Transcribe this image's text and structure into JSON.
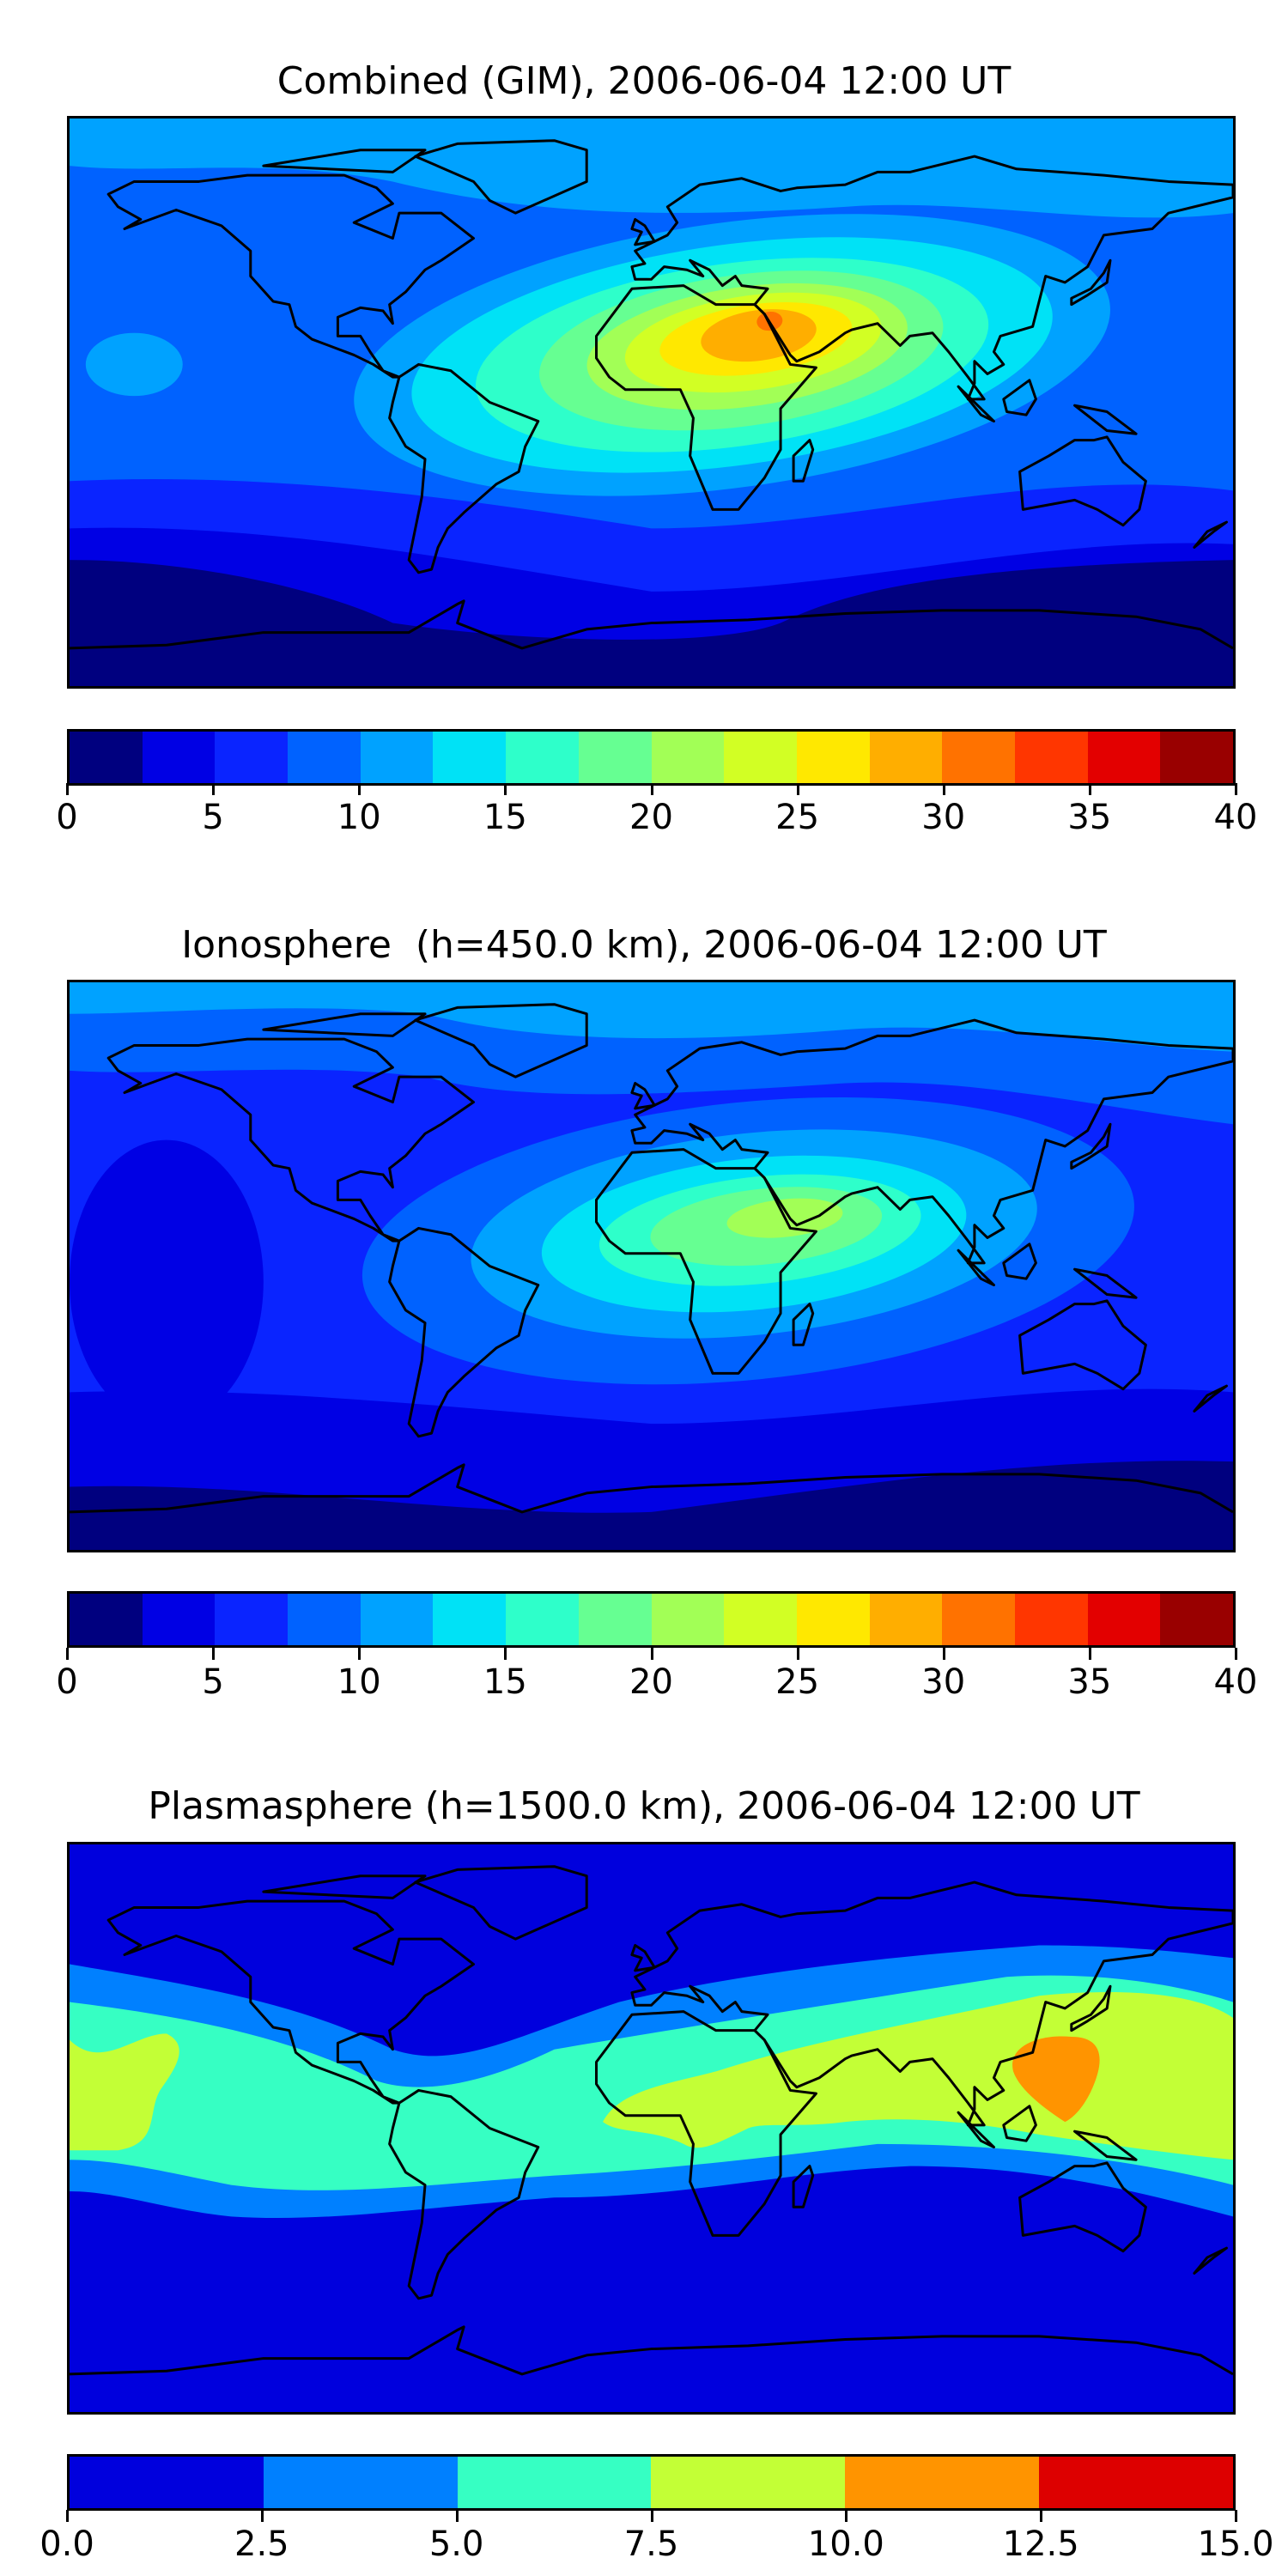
{
  "chart_data": [
    {
      "type": "heatmap",
      "title": "Combined (GIM), 2006-06-04 12:00 UT",
      "projection": "global map with coastlines",
      "colorbar": {
        "levels": [
          0,
          2.5,
          5,
          7.5,
          10,
          12.5,
          15,
          17.5,
          20,
          22.5,
          25,
          27.5,
          30,
          32.5,
          35,
          37.5,
          40
        ],
        "ticks": [
          "0",
          "5",
          "10",
          "15",
          "20",
          "25",
          "30",
          "35",
          "40"
        ],
        "colors": [
          "#00007f",
          "#0000e4",
          "#0a24ff",
          "#0062ff",
          "#00a2ff",
          "#00e2f6",
          "#2effca",
          "#66ff92",
          "#a2ff56",
          "#d2ff24",
          "#ffe800",
          "#ffae00",
          "#ff7200",
          "#ff3600",
          "#e30000",
          "#990000"
        ],
        "range": [
          0,
          40
        ]
      },
      "field_summary": {
        "max_region": "Arabian Peninsula / NE Africa",
        "max_value_approx": 32.5
      }
    },
    {
      "type": "heatmap",
      "title": "Ionosphere  (h=450.0 km), 2006-06-04 12:00 UT",
      "projection": "global map with coastlines",
      "colorbar": {
        "levels": [
          0,
          2.5,
          5,
          7.5,
          10,
          12.5,
          15,
          17.5,
          20,
          22.5,
          25,
          27.5,
          30,
          32.5,
          35,
          37.5,
          40
        ],
        "ticks": [
          "0",
          "5",
          "10",
          "15",
          "20",
          "25",
          "30",
          "35",
          "40"
        ],
        "colors": [
          "#00007f",
          "#0000e4",
          "#0a24ff",
          "#0062ff",
          "#00a2ff",
          "#00e2f6",
          "#2effca",
          "#66ff92",
          "#a2ff56",
          "#d2ff24",
          "#ffe800",
          "#ffae00",
          "#ff7200",
          "#ff3600",
          "#e30000",
          "#990000"
        ],
        "range": [
          0,
          40
        ]
      },
      "field_summary": {
        "max_region": "NE Africa / Arabia",
        "max_value_approx": 22.5
      }
    },
    {
      "type": "heatmap",
      "title": "Plasmasphere (h=1500.0 km), 2006-06-04 12:00 UT",
      "projection": "global map with coastlines",
      "colorbar": {
        "levels": [
          0,
          2.5,
          5,
          7.5,
          10,
          12.5,
          15
        ],
        "ticks": [
          "0.0",
          "2.5",
          "5.0",
          "7.5",
          "10.0",
          "12.5",
          "15.0"
        ],
        "colors": [
          "#0000dd",
          "#0080ff",
          "#36ffc3",
          "#c3ff36",
          "#ff9400",
          "#dd0000"
        ],
        "range": [
          0,
          15
        ]
      },
      "field_summary": {
        "max_region": "Philippines / South China Sea",
        "max_value_approx": 12.5
      }
    }
  ]
}
